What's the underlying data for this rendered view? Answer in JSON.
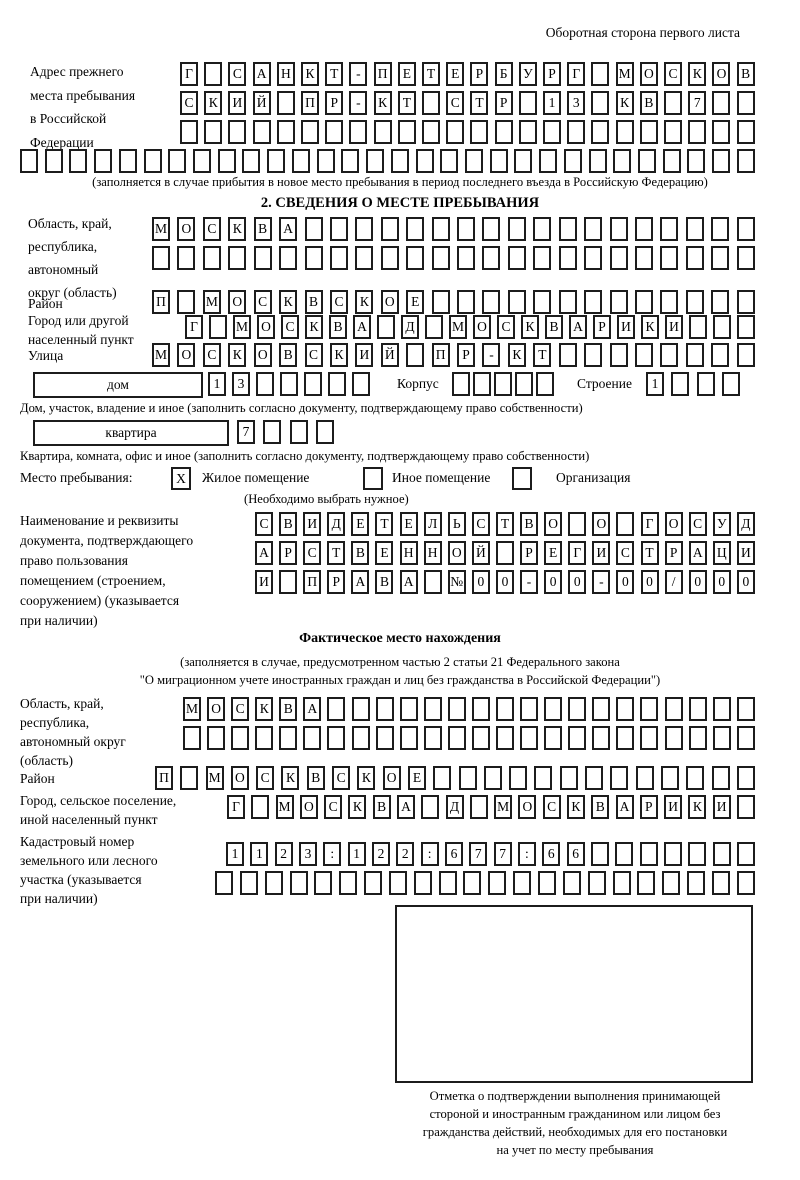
{
  "page": {
    "header_note": "Оборотная сторона первого листа"
  },
  "prev_address": {
    "label_lines": [
      "Адрес прежнего",
      "места пребывания",
      "в Российской",
      "Федерации"
    ],
    "rows": {
      "r1": "Г САНКТ-ПЕТЕРБУРГ МОСКОВ",
      "r2": "СКИЙ ПР-КТ СТР 13 КВ 7",
      "r3": "",
      "r4": ""
    },
    "caption": "(заполняется в случае прибытия в новое место пребывания в период последнего въезда в Российскую Федерацию)"
  },
  "section2": {
    "title": "2. СВЕДЕНИЯ О МЕСТЕ ПРЕБЫВАНИЯ",
    "region": {
      "label_lines": [
        "Область, край,",
        "республика,",
        "автономный",
        "округ (область)"
      ],
      "r1": "МОСКВА",
      "r2": ""
    },
    "district": {
      "label": "Район",
      "value": "П МОСКВСКОЕ"
    },
    "city": {
      "label_lines": [
        "Город или другой",
        "населенный пункт"
      ],
      "value": "Г МОСКВА Д МОСКВАРИКИ"
    },
    "street": {
      "label": "Улица",
      "value": "МОСКОВСКИЙ ПР-КТ"
    },
    "house": {
      "box_label": "дом",
      "value": "13",
      "korpus_label": "Корпус",
      "korpus_value": "",
      "stroenie_label": "Строение",
      "stroenie_value": "1",
      "caption": "Дом, участок, владение и иное (заполнить согласно документу, подтверждающему право собственности)"
    },
    "apartment": {
      "box_label": "квартира",
      "value": "7",
      "caption": "Квартира, комната, офис и иное (заполнить согласно документу, подтверждающему право собственности)"
    },
    "stay_place": {
      "label": "Место пребывания:",
      "options": [
        {
          "label": "Жилое помещение",
          "checked": "X"
        },
        {
          "label": "Иное помещение",
          "checked": ""
        },
        {
          "label": "Организация",
          "checked": ""
        }
      ],
      "caption": "(Необходимо выбрать нужное)"
    },
    "document": {
      "label_lines": [
        "Наименование и реквизиты",
        "документа, подтверждающего",
        "право пользования",
        "помещением (строением,",
        "сооружением) (указывается",
        "при наличии)"
      ],
      "r1": "СВИДЕТЕЛЬСТВО О ГОСУД",
      "r2": "АРСТВЕННОЙ РЕГИСТРАЦИ",
      "r3": "И ПРАВА №00-00-00/000"
    }
  },
  "actual_location": {
    "title": "Фактическое место нахождения",
    "caption_lines": [
      "(заполняется в случае, предусмотренном частью 2 статьи 21 Федерального закона",
      "\"О миграционном учете иностранных граждан и лиц без гражданства в Российской Федерации\")"
    ],
    "region": {
      "label_lines": [
        "Область, край,",
        "республика,",
        "автономный округ",
        "(область)"
      ],
      "r1": "МОСКВА",
      "r2": ""
    },
    "district": {
      "label": "Район",
      "value": "П МОСКВСКОЕ"
    },
    "city": {
      "label_lines": [
        "Город, сельское поселение,",
        "иной населенный пункт"
      ],
      "value": "Г МОСКВА Д МОСКВАРИКИ"
    },
    "cadastral": {
      "label_lines": [
        "Кадастровый номер",
        "земельного или лесного",
        "участка (указывается",
        "при наличии)"
      ],
      "r1": "1123:122:677:66",
      "r2": ""
    },
    "stamp_caption_lines": [
      "Отметка о подтверждении выполнения принимающей",
      "стороной и иностранным гражданином или лицом без",
      "гражданства действий, необходимых для его постановки",
      "на учет по месту пребывания"
    ]
  }
}
